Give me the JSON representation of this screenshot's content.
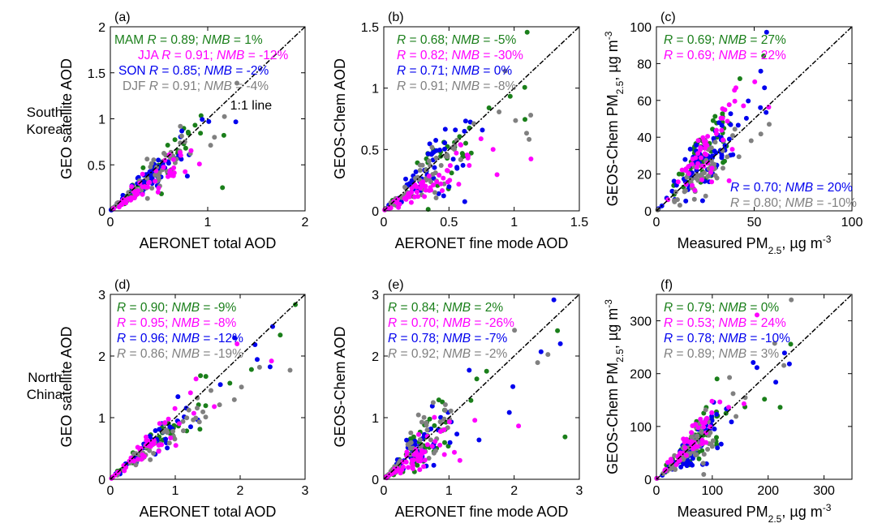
{
  "row_labels": [
    [
      "South",
      "Korea"
    ],
    [
      "North",
      "China"
    ]
  ],
  "colors": {
    "MAM": "#1a7f1a",
    "JJA": "#ff00ff",
    "SON": "#0000ee",
    "DJF": "#808080",
    "line": "#000000"
  },
  "chart_data": [
    {
      "panel": "(a)",
      "type": "scatter",
      "xlabel": "AERONET total AOD",
      "ylabel": "GEO satellite AOD",
      "xlim": [
        0,
        2
      ],
      "ylim": [
        0,
        2
      ],
      "xticks": [
        "0",
        "1",
        "2"
      ],
      "yticks": [
        "0",
        "0.5",
        "1",
        "1.5",
        "2"
      ],
      "line_label": "1:1 line",
      "series": [
        {
          "name": "MAM",
          "R": "0.89",
          "NMB": "1%"
        },
        {
          "name": "JJA",
          "R": "0.91",
          "NMB": "-12%"
        },
        {
          "name": "SON",
          "R": "0.85",
          "NMB": "-2%"
        },
        {
          "name": "DJF",
          "R": "0.91",
          "NMB": "-4%"
        }
      ]
    },
    {
      "panel": "(b)",
      "type": "scatter",
      "xlabel": "AERONET fine mode AOD",
      "ylabel": "GEOS-Chem AOD",
      "xlim": [
        0,
        1.5
      ],
      "ylim": [
        0,
        1.5
      ],
      "xticks": [
        "0",
        "0.5",
        "1",
        "1.5"
      ],
      "yticks": [
        "0",
        "0.5",
        "1",
        "1.5"
      ],
      "series": [
        {
          "R": "0.68",
          "NMB": "-5%"
        },
        {
          "R": "0.82",
          "NMB": "-30%"
        },
        {
          "R": "0.71",
          "NMB": "0%"
        },
        {
          "R": "0.91",
          "NMB": "-8%"
        }
      ]
    },
    {
      "panel": "(c)",
      "type": "scatter",
      "xlabel": "Measured PM2.5, µg m-3",
      "ylabel": "GEOS-Chem PM2.5, µg m-3",
      "xlim": [
        0,
        100
      ],
      "ylim": [
        0,
        100
      ],
      "xticks": [
        "0",
        "50",
        "100"
      ],
      "yticks": [
        "0",
        "20",
        "40",
        "60",
        "80",
        "100"
      ],
      "series": [
        {
          "R": "0.69",
          "NMB": "27%"
        },
        {
          "R": "0.69",
          "NMB": "22%"
        },
        {
          "R": "0.70",
          "NMB": "20%"
        },
        {
          "R": "0.80",
          "NMB": "-10%"
        }
      ]
    },
    {
      "panel": "(d)",
      "type": "scatter",
      "xlabel": "AERONET total AOD",
      "ylabel": "GEO satellite AOD",
      "xlim": [
        0,
        3
      ],
      "ylim": [
        0,
        3
      ],
      "xticks": [
        "0",
        "1",
        "2",
        "3"
      ],
      "yticks": [
        "0",
        "1",
        "2",
        "3"
      ],
      "series": [
        {
          "R": "0.90",
          "NMB": "-9%"
        },
        {
          "R": "0.95",
          "NMB": "-8%"
        },
        {
          "R": "0.96",
          "NMB": "-12%"
        },
        {
          "R": "0.86",
          "NMB": "-19%"
        }
      ]
    },
    {
      "panel": "(e)",
      "type": "scatter",
      "xlabel": "AERONET fine mode AOD",
      "ylabel": "GEOS-Chem AOD",
      "xlim": [
        0,
        3
      ],
      "ylim": [
        0,
        3
      ],
      "xticks": [
        "0",
        "1",
        "2",
        "3"
      ],
      "yticks": [
        "0",
        "1",
        "2",
        "3"
      ],
      "series": [
        {
          "R": "0.84",
          "NMB": "2%"
        },
        {
          "R": "0.70",
          "NMB": "-26%"
        },
        {
          "R": "0.78",
          "NMB": "-7%"
        },
        {
          "R": "0.92",
          "NMB": "-2%"
        }
      ]
    },
    {
      "panel": "(f)",
      "type": "scatter",
      "xlabel": "Measured PM2.5, µg m-3",
      "ylabel": "GEOS-Chem PM2.5, µg m-3",
      "xlim": [
        0,
        350
      ],
      "ylim": [
        0,
        350
      ],
      "xticks": [
        "0",
        "100",
        "200",
        "300"
      ],
      "yticks": [
        "0",
        "100",
        "200",
        "300"
      ],
      "series": [
        {
          "R": "0.79",
          "NMB": "0%"
        },
        {
          "R": "0.53",
          "NMB": "24%"
        },
        {
          "R": "0.78",
          "NMB": "-10%"
        },
        {
          "R": "0.89",
          "NMB": "3%"
        }
      ]
    }
  ]
}
